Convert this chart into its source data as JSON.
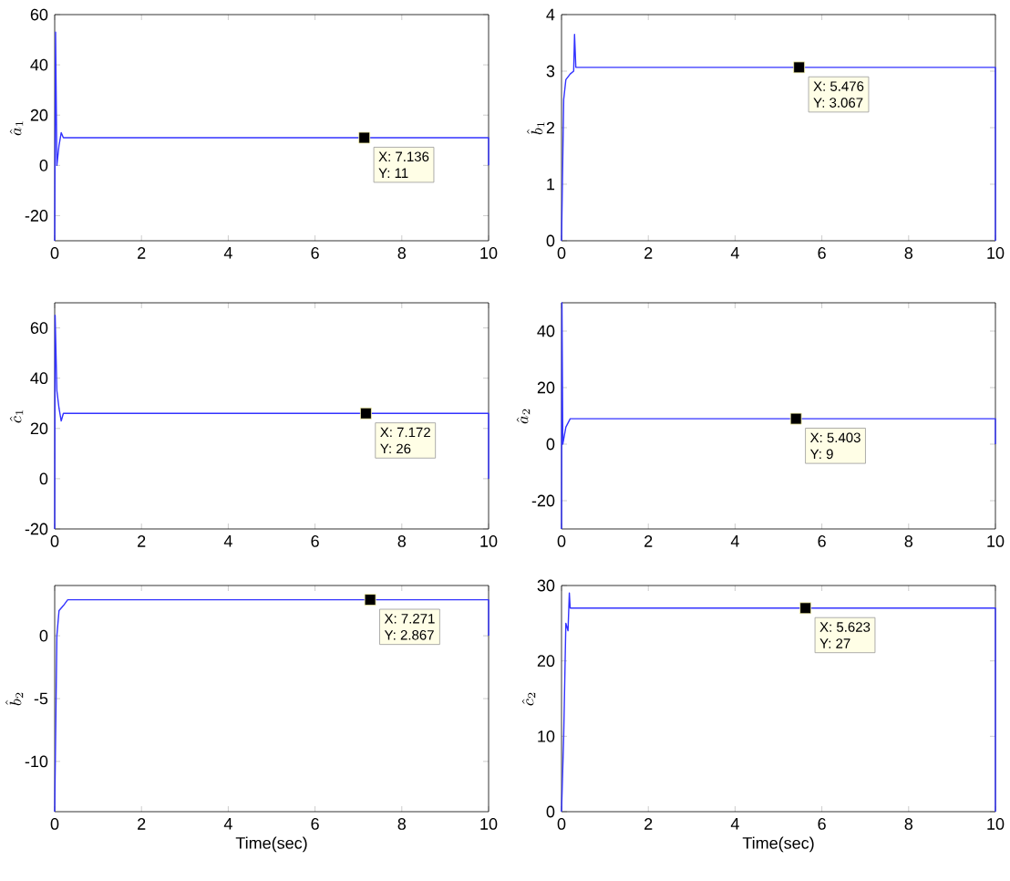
{
  "chart_data": [
    {
      "type": "line",
      "ylabel": "\\hat{a}_1",
      "xlim": [
        0,
        10
      ],
      "ylim": [
        -30,
        60
      ],
      "xticks": [
        0,
        2,
        4,
        6,
        8,
        10
      ],
      "yticks": [
        -20,
        0,
        20,
        40,
        60
      ],
      "grid": false,
      "series": [
        {
          "color": "#3333ff",
          "x": [
            0,
            0.02,
            0.05,
            0.1,
            0.15,
            0.2,
            10,
            10
          ],
          "values": [
            -30,
            53,
            0,
            8,
            13,
            11,
            11,
            0
          ]
        }
      ],
      "annotations": [
        {
          "text": "X: 7.136",
          "x": 7.136,
          "y": 11
        },
        "Y: 11"
      ]
    },
    {
      "type": "line",
      "ylabel": "\\hat{b}_1",
      "xlim": [
        0,
        10
      ],
      "ylim": [
        0,
        4
      ],
      "xticks": [
        0,
        2,
        4,
        6,
        8,
        10
      ],
      "yticks": [
        0,
        1,
        2,
        3,
        4
      ],
      "grid": false,
      "series": [
        {
          "color": "#3333ff",
          "x": [
            0,
            0.05,
            0.1,
            0.2,
            0.28,
            0.3,
            0.33,
            10,
            10
          ],
          "values": [
            0,
            2.5,
            2.85,
            2.95,
            3.0,
            3.65,
            3.067,
            3.067,
            0
          ]
        }
      ],
      "annotations": [
        {
          "text": "X: 5.476",
          "x": 5.476,
          "y": 3.067
        },
        "Y: 3.067"
      ]
    },
    {
      "type": "line",
      "ylabel": "\\hat{c}_1",
      "xlim": [
        0,
        10
      ],
      "ylim": [
        -20,
        70
      ],
      "xticks": [
        0,
        2,
        4,
        6,
        8,
        10
      ],
      "yticks": [
        -20,
        0,
        20,
        40,
        60
      ],
      "grid": false,
      "series": [
        {
          "color": "#3333ff",
          "x": [
            0,
            0.01,
            0.05,
            0.1,
            0.15,
            0.2,
            10,
            10
          ],
          "values": [
            -20,
            65,
            35,
            28,
            23,
            26,
            26,
            0
          ]
        }
      ],
      "annotations": [
        {
          "text": "X: 7.172",
          "x": 7.172,
          "y": 26
        },
        "Y: 26"
      ]
    },
    {
      "type": "line",
      "ylabel": "\\hat{a}_2",
      "xlim": [
        0,
        10
      ],
      "ylim": [
        -30,
        50
      ],
      "xticks": [
        0,
        2,
        4,
        6,
        8,
        10
      ],
      "yticks": [
        -20,
        0,
        20,
        40
      ],
      "grid": false,
      "series": [
        {
          "color": "#3333ff",
          "x": [
            0,
            0.01,
            0.03,
            0.1,
            0.2,
            10,
            10
          ],
          "values": [
            -30,
            50,
            0,
            6,
            9,
            9,
            0
          ]
        }
      ],
      "annotations": [
        {
          "text": "X: 5.403",
          "x": 5.403,
          "y": 9
        },
        "Y: 9"
      ]
    },
    {
      "type": "line",
      "ylabel": "\\hat{b}_2",
      "xlabel": "Time(sec)",
      "xlim": [
        0,
        10
      ],
      "ylim": [
        -14,
        4
      ],
      "xticks": [
        0,
        2,
        4,
        6,
        8,
        10
      ],
      "yticks": [
        -10,
        -5,
        0
      ],
      "grid": false,
      "series": [
        {
          "color": "#3333ff",
          "x": [
            0,
            0.05,
            0.1,
            0.2,
            0.3,
            10,
            10
          ],
          "values": [
            -14,
            0,
            2,
            2.4,
            2.867,
            2.867,
            0
          ]
        }
      ],
      "annotations": [
        {
          "text": "X: 7.271",
          "x": 7.271,
          "y": 2.867
        },
        "Y: 2.867"
      ]
    },
    {
      "type": "line",
      "ylabel": "\\hat{c}_2",
      "xlabel": "Time(sec)",
      "xlim": [
        0,
        10
      ],
      "ylim": [
        0,
        30
      ],
      "xticks": [
        0,
        2,
        4,
        6,
        8,
        10
      ],
      "yticks": [
        0,
        10,
        20,
        30
      ],
      "grid": false,
      "series": [
        {
          "color": "#3333ff",
          "x": [
            0,
            0.05,
            0.1,
            0.15,
            0.18,
            0.2,
            10,
            10
          ],
          "values": [
            0,
            10,
            25,
            24,
            29,
            27,
            27,
            0
          ]
        }
      ],
      "annotations": [
        {
          "text": "X: 5.623",
          "x": 5.623,
          "y": 27
        },
        "Y: 27"
      ]
    }
  ]
}
